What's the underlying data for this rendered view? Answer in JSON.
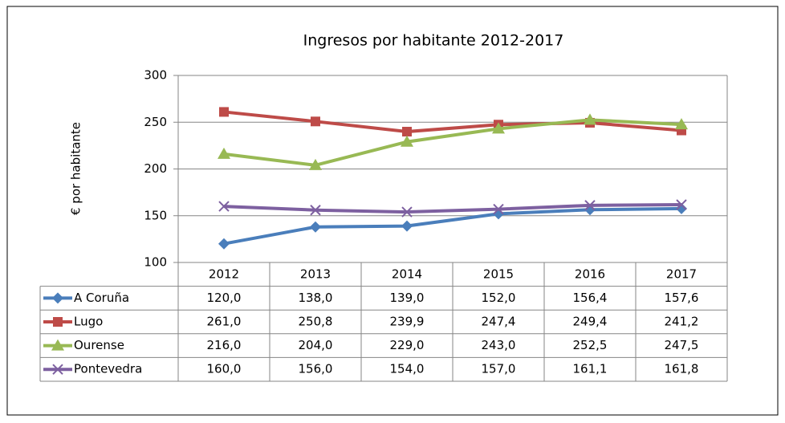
{
  "chart_data": {
    "type": "line",
    "title": "Ingresos por habitante 2012-2017",
    "y_label": "€ por habitante",
    "categories": [
      "2012",
      "2013",
      "2014",
      "2015",
      "2016",
      "2017"
    ],
    "series": [
      {
        "name": "A Coruña",
        "color": "#4a7ebb",
        "marker": "diamond",
        "values": [
          120,
          138,
          139,
          152,
          156.4,
          157.6
        ],
        "value_labels": [
          "120,0",
          "138,0",
          "139,0",
          "152,0",
          "156,4",
          "157,6"
        ]
      },
      {
        "name": "Lugo",
        "color": "#be4b48",
        "marker": "square",
        "values": [
          261,
          250.8,
          239.9,
          247.4,
          249.4,
          241.2
        ],
        "value_labels": [
          "261,0",
          "250,8",
          "239,9",
          "247,4",
          "249,4",
          "241,2"
        ]
      },
      {
        "name": "Ourense",
        "color": "#98b954",
        "marker": "triangle",
        "values": [
          216,
          204,
          229,
          243,
          252.5,
          247.5
        ],
        "value_labels": [
          "216,0",
          "204,0",
          "229,0",
          "243,0",
          "252,5",
          "247,5"
        ]
      },
      {
        "name": "Pontevedra",
        "color": "#7d60a0",
        "marker": "x",
        "values": [
          160,
          156,
          154,
          157,
          161.1,
          161.8
        ],
        "value_labels": [
          "160,0",
          "156,0",
          "154,0",
          "157,0",
          "161,1",
          "161,8"
        ]
      }
    ],
    "ylim": [
      100,
      300
    ],
    "yticks": [
      100,
      150,
      200,
      250,
      300
    ],
    "grid": true
  }
}
